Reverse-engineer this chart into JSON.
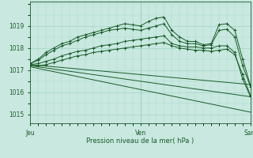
{
  "background_color": "#c8e8e0",
  "grid_color": "#a8d8cc",
  "line_color": "#1a5c28",
  "xlabel": "Pression niveau de la mer( hPa )",
  "ylim": [
    1014.6,
    1020.1
  ],
  "yticks": [
    1015,
    1016,
    1017,
    1018,
    1019
  ],
  "day_labels": [
    "Jeu",
    "Ven",
    "Sam"
  ],
  "day_positions": [
    0,
    14,
    28
  ],
  "lines": [
    {
      "x": [
        0,
        1,
        2,
        3,
        4,
        5,
        6,
        7,
        8,
        9,
        10,
        11,
        12,
        13,
        14,
        15,
        16,
        17,
        18,
        19,
        20,
        21,
        22,
        23,
        24,
        25,
        26,
        27,
        28
      ],
      "y": [
        1017.3,
        1017.5,
        1017.8,
        1018.0,
        1018.2,
        1018.3,
        1018.5,
        1018.6,
        1018.7,
        1018.8,
        1018.9,
        1019.0,
        1019.1,
        1019.05,
        1019.0,
        1019.2,
        1019.35,
        1019.4,
        1018.8,
        1018.5,
        1018.3,
        1018.3,
        1018.15,
        1018.2,
        1019.05,
        1019.1,
        1018.8,
        1017.5,
        1016.3
      ],
      "marker": "+"
    },
    {
      "x": [
        0,
        1,
        2,
        3,
        4,
        5,
        6,
        7,
        8,
        9,
        10,
        11,
        12,
        13,
        14,
        15,
        16,
        17,
        18,
        19,
        20,
        21,
        22,
        23,
        24,
        25,
        26,
        27,
        28
      ],
      "y": [
        1017.3,
        1017.45,
        1017.7,
        1017.9,
        1018.1,
        1018.2,
        1018.35,
        1018.5,
        1018.6,
        1018.7,
        1018.8,
        1018.85,
        1018.9,
        1018.85,
        1018.8,
        1018.9,
        1019.0,
        1019.1,
        1018.6,
        1018.3,
        1018.2,
        1018.2,
        1018.1,
        1018.15,
        1018.8,
        1018.85,
        1018.5,
        1017.2,
        1016.25
      ],
      "marker": "+"
    },
    {
      "x": [
        0,
        1,
        2,
        3,
        4,
        5,
        6,
        7,
        8,
        9,
        10,
        11,
        12,
        13,
        14,
        15,
        16,
        17,
        18,
        19,
        20,
        21,
        22,
        23,
        24,
        25,
        26,
        27,
        28
      ],
      "y": [
        1017.25,
        1017.3,
        1017.4,
        1017.5,
        1017.65,
        1017.75,
        1017.85,
        1017.9,
        1018.0,
        1018.1,
        1018.15,
        1018.2,
        1018.3,
        1018.35,
        1018.4,
        1018.45,
        1018.5,
        1018.55,
        1018.2,
        1018.1,
        1018.05,
        1018.05,
        1018.0,
        1018.0,
        1018.1,
        1018.1,
        1017.8,
        1016.6,
        1015.8
      ],
      "marker": "+"
    },
    {
      "x": [
        0,
        1,
        2,
        3,
        4,
        5,
        6,
        7,
        8,
        9,
        10,
        11,
        12,
        13,
        14,
        15,
        16,
        17,
        18,
        19,
        20,
        21,
        22,
        23,
        24,
        25,
        26,
        27,
        28
      ],
      "y": [
        1017.2,
        1017.2,
        1017.25,
        1017.35,
        1017.45,
        1017.55,
        1017.65,
        1017.7,
        1017.8,
        1017.85,
        1017.9,
        1017.95,
        1018.0,
        1018.05,
        1018.1,
        1018.15,
        1018.2,
        1018.25,
        1018.1,
        1018.0,
        1017.95,
        1017.9,
        1017.9,
        1017.85,
        1017.9,
        1017.95,
        1017.7,
        1016.8,
        1015.85
      ],
      "marker": "+"
    },
    {
      "x": [
        0,
        28
      ],
      "y": [
        1017.25,
        1016.35
      ],
      "marker": null
    },
    {
      "x": [
        0,
        28
      ],
      "y": [
        1017.2,
        1015.8
      ],
      "marker": null
    },
    {
      "x": [
        0,
        28
      ],
      "y": [
        1017.15,
        1015.1
      ],
      "marker": null
    }
  ]
}
